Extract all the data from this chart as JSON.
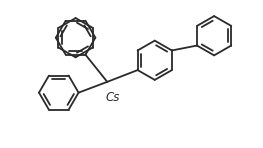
{
  "bg_color": "#ffffff",
  "line_color": "#2a2a2a",
  "lw": 1.3,
  "fig_w": 2.63,
  "fig_h": 1.48,
  "dpi": 100,
  "cs_label": "Cs",
  "cs_fontsize": 8.5
}
